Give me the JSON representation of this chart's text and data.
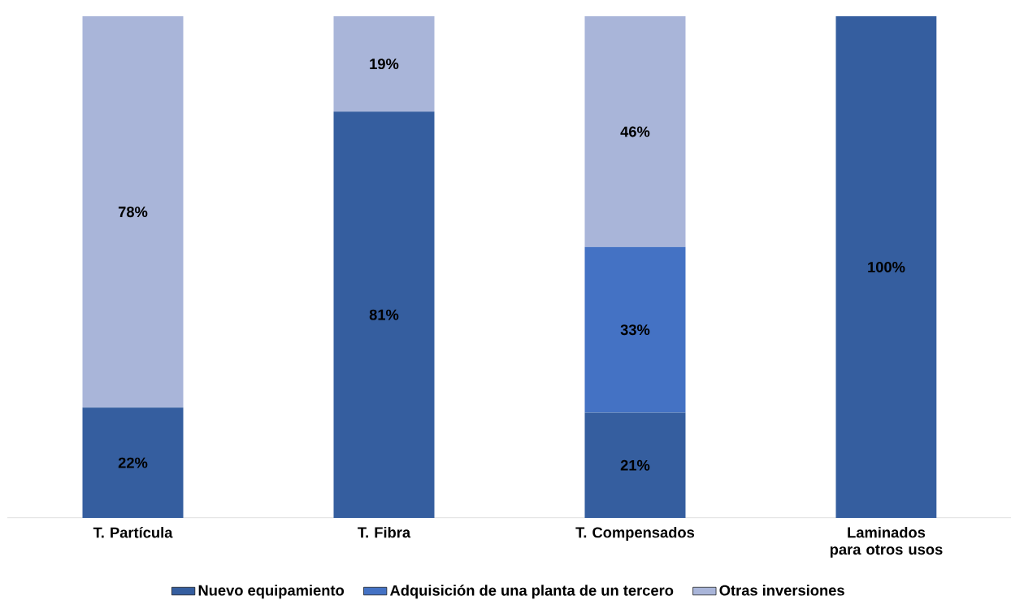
{
  "chart_data": {
    "type": "bar",
    "stacked": true,
    "categories": [
      "T. Partícula",
      "T. Fibra",
      "T. Compensados",
      "Laminados para otros usos"
    ],
    "series": [
      {
        "name": "Nuevo equipamiento",
        "color": "#355e9f",
        "values": [
          22,
          81,
          21,
          100
        ],
        "value_labels": [
          "22%",
          "81%",
          "21%",
          "100%"
        ]
      },
      {
        "name": "Adquisición de una planta de un tercero",
        "color": "#4472c4",
        "values": [
          null,
          null,
          33,
          null
        ],
        "value_labels": [
          null,
          null,
          "33%",
          null
        ]
      },
      {
        "name": "Otras inversiones",
        "color": "#a9b5d9",
        "values": [
          78,
          19,
          46,
          null
        ],
        "value_labels": [
          "78%",
          "19%",
          "46%",
          null
        ]
      }
    ],
    "legend": "bottom"
  }
}
